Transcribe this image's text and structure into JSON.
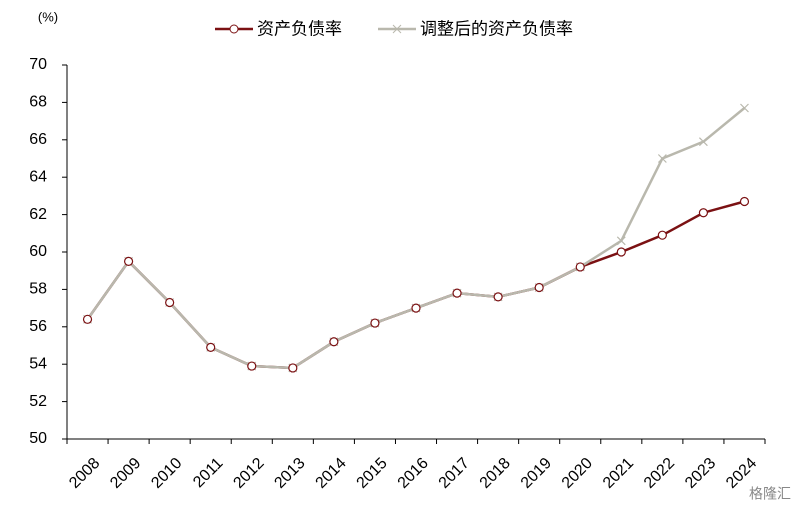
{
  "chart_data": {
    "type": "line",
    "unit_label": "(%)",
    "categories": [
      "2008",
      "2009",
      "2010",
      "2011",
      "2012",
      "2013",
      "2014",
      "2015",
      "2016",
      "2017",
      "2018",
      "2019",
      "2020",
      "2021",
      "2022",
      "2023",
      "2024"
    ],
    "series": [
      {
        "name": "资产负债率",
        "color": "#7b1113",
        "marker": "circle",
        "values": [
          56.4,
          59.5,
          57.3,
          54.9,
          53.9,
          53.8,
          55.2,
          56.2,
          57.0,
          57.8,
          57.6,
          58.1,
          59.2,
          60.0,
          60.9,
          62.1,
          62.7
        ]
      },
      {
        "name": "调整后的资产负债率",
        "color": "#b9b8ad",
        "marker": "x",
        "values": [
          56.4,
          59.5,
          57.3,
          54.9,
          53.9,
          53.8,
          55.2,
          56.2,
          57.0,
          57.8,
          57.6,
          58.1,
          59.2,
          60.6,
          65.0,
          65.9,
          67.7
        ]
      }
    ],
    "ylim": [
      50,
      70
    ],
    "yticks": [
      50,
      52,
      54,
      56,
      58,
      60,
      62,
      64,
      66,
      68,
      70
    ],
    "legend": "top",
    "watermark": "格隆汇"
  }
}
